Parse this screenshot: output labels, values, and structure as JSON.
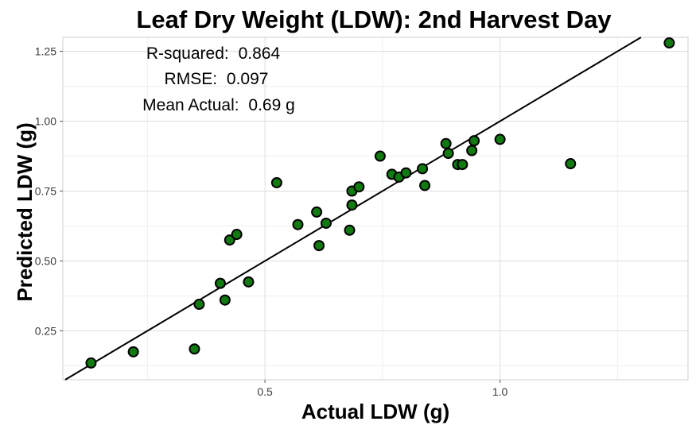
{
  "chart_data": {
    "type": "scatter",
    "title": "Leaf Dry Weight (LDW): 2nd Harvest Day",
    "xlabel": "Actual LDW (g)",
    "ylabel": "Predicted LDW (g)",
    "xlim": [
      0.07,
      1.4
    ],
    "ylim": [
      0.075,
      1.3
    ],
    "x_ticks": [
      0.5,
      1.0
    ],
    "x_tick_labels": [
      "0.5",
      "1.0"
    ],
    "y_ticks": [
      0.25,
      0.5,
      0.75,
      1.0,
      1.25
    ],
    "y_tick_labels": [
      "0.25",
      "0.50",
      "0.75",
      "1.00",
      "1.25"
    ],
    "grid": true,
    "annotations": [
      {
        "label": "R-squared:",
        "value": "0.864"
      },
      {
        "label": "RMSE:",
        "value": "0.097"
      },
      {
        "label": "Mean Actual:",
        "value": "0.69 g"
      }
    ],
    "fit_line": {
      "slope": 1.0,
      "intercept": 0.0
    },
    "points": [
      {
        "x": 0.13,
        "y": 0.135
      },
      {
        "x": 0.22,
        "y": 0.175
      },
      {
        "x": 0.35,
        "y": 0.185
      },
      {
        "x": 0.36,
        "y": 0.345
      },
      {
        "x": 0.405,
        "y": 0.42
      },
      {
        "x": 0.415,
        "y": 0.36
      },
      {
        "x": 0.425,
        "y": 0.575
      },
      {
        "x": 0.44,
        "y": 0.595
      },
      {
        "x": 0.465,
        "y": 0.425
      },
      {
        "x": 0.525,
        "y": 0.78
      },
      {
        "x": 0.57,
        "y": 0.63
      },
      {
        "x": 0.61,
        "y": 0.675
      },
      {
        "x": 0.615,
        "y": 0.555
      },
      {
        "x": 0.63,
        "y": 0.635
      },
      {
        "x": 0.68,
        "y": 0.61
      },
      {
        "x": 0.685,
        "y": 0.7
      },
      {
        "x": 0.685,
        "y": 0.75
      },
      {
        "x": 0.7,
        "y": 0.765
      },
      {
        "x": 0.745,
        "y": 0.875
      },
      {
        "x": 0.77,
        "y": 0.81
      },
      {
        "x": 0.785,
        "y": 0.8
      },
      {
        "x": 0.8,
        "y": 0.815
      },
      {
        "x": 0.835,
        "y": 0.83
      },
      {
        "x": 0.84,
        "y": 0.77
      },
      {
        "x": 0.885,
        "y": 0.92
      },
      {
        "x": 0.89,
        "y": 0.885
      },
      {
        "x": 0.91,
        "y": 0.845
      },
      {
        "x": 0.92,
        "y": 0.845
      },
      {
        "x": 0.94,
        "y": 0.895
      },
      {
        "x": 0.945,
        "y": 0.93
      },
      {
        "x": 1.0,
        "y": 0.935
      },
      {
        "x": 1.15,
        "y": 0.848
      },
      {
        "x": 1.36,
        "y": 1.28
      }
    ]
  }
}
